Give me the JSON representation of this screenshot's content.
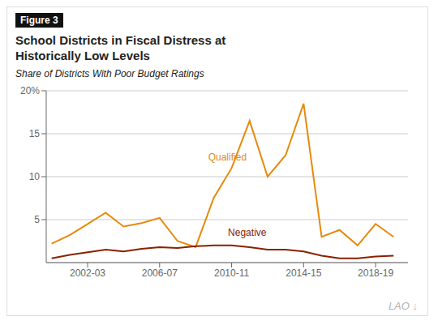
{
  "chart_data": {
    "type": "line",
    "figure_label": "Figure 3",
    "title": "School Districts in Fiscal Distress at\nHistorically Low Levels",
    "subtitle": "Share of Districts With Poor Budget Ratings",
    "logo": "LAO ↓",
    "x": [
      2000.5,
      2001.5,
      2002.5,
      2003.5,
      2004.5,
      2005.5,
      2006.5,
      2007.5,
      2008.5,
      2009.5,
      2010.5,
      2011.5,
      2012.5,
      2013.5,
      2014.5,
      2015.5,
      2016.5,
      2017.5,
      2018.5,
      2019.5
    ],
    "series": [
      {
        "name": "Qualified",
        "color": "#e8890c",
        "values": [
          2.2,
          3.2,
          4.5,
          5.8,
          4.2,
          4.6,
          5.2,
          2.5,
          1.8,
          7.5,
          11.0,
          16.5,
          10.0,
          12.5,
          18.5,
          3.0,
          3.8,
          2.0,
          4.5,
          3.0
        ]
      },
      {
        "name": "Negative",
        "color": "#8b2000",
        "values": [
          0.5,
          0.9,
          1.2,
          1.5,
          1.3,
          1.6,
          1.8,
          1.7,
          1.9,
          2.0,
          2.0,
          1.8,
          1.5,
          1.5,
          1.3,
          0.8,
          0.5,
          0.5,
          0.7,
          0.8
        ]
      }
    ],
    "xlim": [
      2000.2,
      2020.3
    ],
    "xticks": [
      {
        "value": 2002.5,
        "label": "2002-03"
      },
      {
        "value": 2006.5,
        "label": "2006-07"
      },
      {
        "value": 2010.5,
        "label": "2010-11"
      },
      {
        "value": 2014.5,
        "label": "2014-15"
      },
      {
        "value": 2018.5,
        "label": "2018-19"
      }
    ],
    "ylim": [
      0,
      20
    ],
    "yticks": [
      5,
      10,
      15,
      {
        "value": 20,
        "label": "20%"
      }
    ],
    "grid": true,
    "annotations": [
      {
        "text": "Qualified",
        "x": 2009.2,
        "y": 12.3
      },
      {
        "text": "Negative",
        "x": 2010.3,
        "y": 3.5
      }
    ]
  }
}
